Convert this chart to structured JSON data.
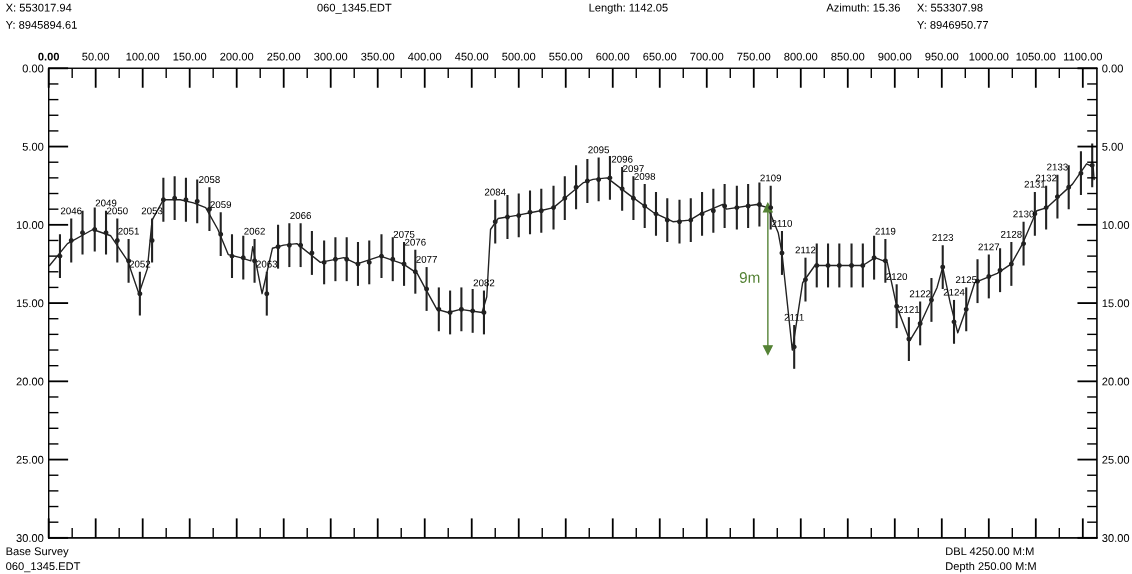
{
  "chart_data": {
    "type": "line",
    "annotations": [
      "X: 553017.94",
      "Y: 8945894.61",
      "060_1345.EDT",
      "Length: 1142.05",
      "Azimuth: 15.36",
      "X: 553307.98",
      "Y: 8946950.77",
      "Base Survey",
      "060_1345.EDT",
      "DBL 4250.00 M:M",
      "Depth 250.00 M:M",
      "9m",
      {
        "text": "2046",
        "x": 24,
        "y": 11.0
      },
      {
        "text": "2049",
        "x": 61,
        "y": 10.5
      },
      {
        "text": "2050",
        "x": 73,
        "y": 11.0
      },
      {
        "text": "2051",
        "x": 85,
        "y": 12.3
      },
      {
        "text": "2052",
        "x": 97,
        "y": 14.4
      },
      {
        "text": "2053",
        "x": 110,
        "y": 11.0
      },
      {
        "text": "2058",
        "x": 171,
        "y": 9.0
      },
      {
        "text": "2059",
        "x": 183,
        "y": 10.6
      },
      {
        "text": "2062",
        "x": 219,
        "y": 12.3
      },
      {
        "text": "2063",
        "x": 232,
        "y": 14.4
      },
      {
        "text": "2066",
        "x": 268,
        "y": 11.3
      },
      {
        "text": "2075",
        "x": 378,
        "y": 12.5
      },
      {
        "text": "2076",
        "x": 390,
        "y": 13.0
      },
      {
        "text": "2077",
        "x": 402,
        "y": 14.1
      },
      {
        "text": "2082",
        "x": 463,
        "y": 15.6
      },
      {
        "text": "2084",
        "x": 475,
        "y": 9.8
      },
      {
        "text": "2095",
        "x": 585,
        "y": 7.1
      },
      {
        "text": "2096",
        "x": 610,
        "y": 7.7
      },
      {
        "text": "2097",
        "x": 622,
        "y": 8.3
      },
      {
        "text": "2098",
        "x": 634,
        "y": 8.8
      },
      {
        "text": "2109",
        "x": 768,
        "y": 8.9
      },
      {
        "text": "2110",
        "x": 780,
        "y": 11.8
      },
      {
        "text": "2111",
        "x": 793,
        "y": 17.8
      },
      {
        "text": "2112",
        "x": 805,
        "y": 13.5
      },
      {
        "text": "2119",
        "x": 890,
        "y": 12.3
      },
      {
        "text": "2120",
        "x": 902,
        "y": 15.2
      },
      {
        "text": "2121",
        "x": 915,
        "y": 17.3
      },
      {
        "text": "2122",
        "x": 927,
        "y": 16.3
      },
      {
        "text": "2123",
        "x": 951,
        "y": 12.7
      },
      {
        "text": "2124",
        "x": 963,
        "y": 16.2
      },
      {
        "text": "2125",
        "x": 976,
        "y": 15.4
      },
      {
        "text": "2127",
        "x": 1000,
        "y": 13.3
      },
      {
        "text": "2128",
        "x": 1024,
        "y": 12.5
      },
      {
        "text": "2130",
        "x": 1037,
        "y": 11.2
      },
      {
        "text": "2131",
        "x": 1049,
        "y": 9.3
      },
      {
        "text": "2132",
        "x": 1061,
        "y": 8.9
      },
      {
        "text": "2133",
        "x": 1073,
        "y": 8.2
      }
    ],
    "series": [
      {
        "color": "#222222",
        "x": [
          1,
          20,
          47,
          66,
          84,
          96,
          105,
          110,
          122,
          140,
          154,
          167,
          180,
          191,
          204,
          215,
          217,
          227,
          238,
          250,
          264,
          289,
          314,
          328,
          353,
          377,
          392,
          400,
          413,
          425,
          438,
          461,
          466,
          470,
          478,
          498,
          523,
          537,
          547,
          569,
          579,
          594,
          618,
          643,
          664,
          682,
          693,
          717,
          721,
          753,
          765,
          776,
          780,
          791,
          802,
          815,
          866,
          879,
          892,
          902,
          916,
          929,
          945,
          951,
          959,
          967,
          977,
          985,
          1009,
          1024,
          1036,
          1051,
          1062,
          1089,
          1104,
          1111,
          1112
        ],
        "values": [
          12.6,
          11.2,
          10.3,
          10.7,
          12.3,
          14.4,
          12.8,
          9.7,
          8.4,
          8.4,
          8.6,
          8.9,
          10.3,
          11.9,
          12.1,
          12.3,
          11.4,
          14.4,
          11.5,
          11.3,
          11.2,
          12.4,
          12.1,
          12.5,
          12.0,
          12.5,
          13.1,
          14.0,
          15.4,
          15.6,
          15.4,
          15.6,
          14.6,
          10.3,
          9.6,
          9.4,
          9.1,
          8.9,
          8.4,
          7.3,
          7.1,
          7.0,
          8.1,
          9.2,
          9.8,
          9.7,
          9.3,
          8.7,
          9.0,
          8.7,
          8.9,
          10.5,
          11.8,
          18.0,
          13.7,
          12.6,
          12.6,
          12.1,
          12.4,
          15.2,
          17.4,
          16.1,
          14.0,
          12.7,
          15.0,
          16.9,
          15.2,
          13.7,
          13.1,
          12.5,
          11.2,
          9.1,
          8.9,
          7.4,
          6.1,
          6.3,
          7.1
        ]
      },
      {
        "type": "scatter",
        "marker": "circle",
        "color": "#222222",
        "x": [
          12,
          24,
          36,
          49,
          61,
          73,
          85,
          97,
          110,
          122,
          134,
          146,
          158,
          171,
          183,
          195,
          207,
          219,
          232,
          244,
          256,
          268,
          280,
          293,
          305,
          317,
          329,
          341,
          354,
          366,
          378,
          390,
          402,
          415,
          427,
          439,
          451,
          463,
          475,
          488,
          500,
          512,
          524,
          537,
          549,
          561,
          573,
          585,
          597,
          610,
          622,
          634,
          646,
          658,
          671,
          683,
          695,
          707,
          719,
          732,
          744,
          756,
          768,
          780,
          793,
          805,
          817,
          829,
          841,
          854,
          866,
          878,
          890,
          902,
          915,
          927,
          939,
          951,
          963,
          976,
          988,
          1000,
          1012,
          1024,
          1037,
          1049,
          1061,
          1073,
          1085,
          1098,
          1110
        ],
        "values": [
          12.0,
          11.0,
          10.5,
          10.3,
          10.5,
          11.0,
          12.3,
          14.4,
          11.0,
          8.4,
          8.3,
          8.4,
          8.5,
          9.0,
          10.6,
          12.0,
          12.1,
          12.3,
          14.4,
          11.4,
          11.3,
          11.3,
          11.8,
          12.4,
          12.2,
          12.2,
          12.5,
          12.4,
          12.0,
          12.2,
          12.5,
          13.0,
          14.1,
          15.4,
          15.6,
          15.4,
          15.5,
          15.6,
          9.8,
          9.5,
          9.4,
          9.2,
          9.1,
          8.9,
          8.3,
          7.6,
          7.2,
          7.1,
          7.0,
          7.7,
          8.3,
          8.8,
          9.3,
          9.7,
          9.8,
          9.7,
          9.3,
          9.1,
          8.8,
          8.9,
          8.8,
          8.7,
          8.9,
          11.8,
          17.8,
          13.5,
          12.6,
          12.6,
          12.6,
          12.6,
          12.6,
          12.1,
          12.3,
          15.2,
          17.3,
          16.3,
          14.8,
          12.7,
          16.2,
          15.4,
          13.6,
          13.3,
          12.9,
          12.5,
          11.2,
          9.3,
          8.9,
          8.2,
          7.6,
          6.7,
          6.2
        ],
        "errors": [
          1.4,
          1.4,
          1.4,
          1.4,
          1.4,
          1.4,
          1.4,
          1.4,
          1.4,
          1.4,
          1.4,
          1.4,
          1.4,
          1.4,
          1.4,
          1.4,
          1.4,
          1.4,
          1.4,
          1.4,
          1.4,
          1.4,
          1.4,
          1.4,
          1.4,
          1.4,
          1.4,
          1.4,
          1.4,
          1.4,
          1.4,
          1.4,
          1.4,
          1.4,
          1.4,
          1.4,
          1.4,
          1.4,
          1.4,
          1.4,
          1.4,
          1.4,
          1.4,
          1.4,
          1.4,
          1.4,
          1.4,
          1.4,
          1.4,
          1.4,
          1.4,
          1.4,
          1.4,
          1.4,
          1.4,
          1.4,
          1.4,
          1.4,
          1.4,
          1.4,
          1.4,
          1.4,
          1.4,
          1.4,
          1.4,
          1.4,
          1.4,
          1.4,
          1.4,
          1.4,
          1.4,
          1.4,
          1.4,
          1.4,
          1.4,
          1.4,
          1.4,
          1.4,
          1.4,
          1.4,
          1.4,
          1.4,
          1.4,
          1.4,
          1.4,
          1.4,
          1.4,
          1.4,
          1.4,
          1.4,
          1.4
        ]
      },
      {
        "type": "line",
        "marker": "triangle",
        "color": "#548235",
        "x": [
          765,
          765
        ],
        "values": [
          8.9,
          18.0
        ]
      }
    ],
    "xlim": [
      0,
      1115
    ],
    "ylim": [
      30,
      0
    ],
    "y2lim": [
      30,
      0
    ],
    "xticks": [
      {
        "value": 0,
        "label": "0.00"
      },
      {
        "value": 50,
        "label": "50.00"
      },
      {
        "value": 100,
        "label": "100.00"
      },
      {
        "value": 150,
        "label": "150.00"
      },
      {
        "value": 200,
        "label": "200.00"
      },
      {
        "value": 250,
        "label": "250.00"
      },
      {
        "value": 300,
        "label": "300.00"
      },
      {
        "value": 350,
        "label": "350.00"
      },
      {
        "value": 400,
        "label": "400.00"
      },
      {
        "value": 450,
        "label": "450.00"
      },
      {
        "value": 500,
        "label": "500.00"
      },
      {
        "value": 550,
        "label": "550.00"
      },
      {
        "value": 600,
        "label": "600.00"
      },
      {
        "value": 650,
        "label": "650.00"
      },
      {
        "value": 700,
        "label": "700.00"
      },
      {
        "value": 750,
        "label": "750.00"
      },
      {
        "value": 800,
        "label": "800.00"
      },
      {
        "value": 850,
        "label": "850.00"
      },
      {
        "value": 900,
        "label": "900.00"
      },
      {
        "value": 950,
        "label": "950.00"
      },
      {
        "value": 1000,
        "label": "1000.00"
      },
      {
        "value": 1050,
        "label": "1050.00"
      },
      {
        "value": 1100,
        "label": "1100.00"
      }
    ],
    "yticks": [
      {
        "value": 0,
        "label": "0.00"
      },
      {
        "value": 5,
        "label": "5.00"
      },
      {
        "value": 10,
        "label": "10.00"
      },
      {
        "value": 15,
        "label": "15.00"
      },
      {
        "value": 20,
        "label": "20.00"
      },
      {
        "value": 25,
        "label": "25.00"
      },
      {
        "value": 30,
        "label": "30.00"
      }
    ],
    "y2ticks": [
      {
        "value": 0,
        "label": "0.00"
      },
      {
        "value": 5,
        "label": "5.00"
      },
      {
        "value": 10,
        "label": "10.00"
      },
      {
        "value": 15,
        "label": "15.00"
      },
      {
        "value": 20,
        "label": "20.00"
      },
      {
        "value": 25,
        "label": "25.00"
      },
      {
        "value": 30,
        "label": "30.00"
      }
    ],
    "grid": false,
    "legend": false
  }
}
